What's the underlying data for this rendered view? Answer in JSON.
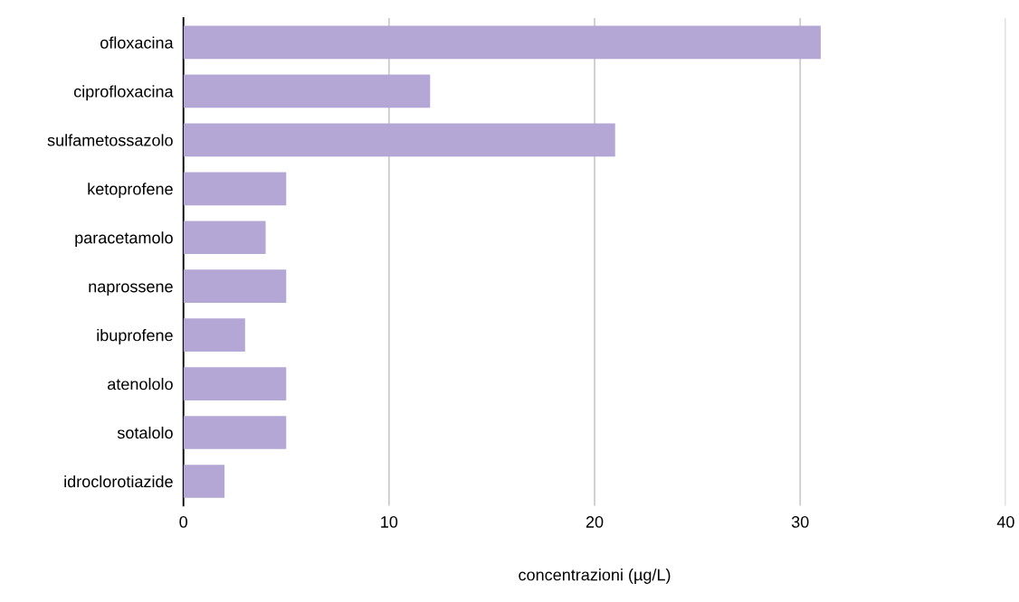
{
  "chart_data": {
    "type": "bar",
    "orientation": "horizontal",
    "xlabel": "concentrazioni (µg/L)",
    "categories": [
      "ofloxacina",
      "ciprofloxacina",
      "sulfametossazolo",
      "ketoprofene",
      "paracetamolo",
      "naprossene",
      "ibuprofene",
      "atenololo",
      "sotalolo",
      "idroclorotiazide"
    ],
    "values": [
      31,
      12,
      21,
      5,
      4,
      5,
      3,
      5,
      5,
      2
    ],
    "color": "#b4a7d6",
    "xlim": [
      0,
      40
    ],
    "xticks": [
      0,
      10,
      20,
      30,
      40
    ],
    "grid": "x",
    "legend": false
  }
}
